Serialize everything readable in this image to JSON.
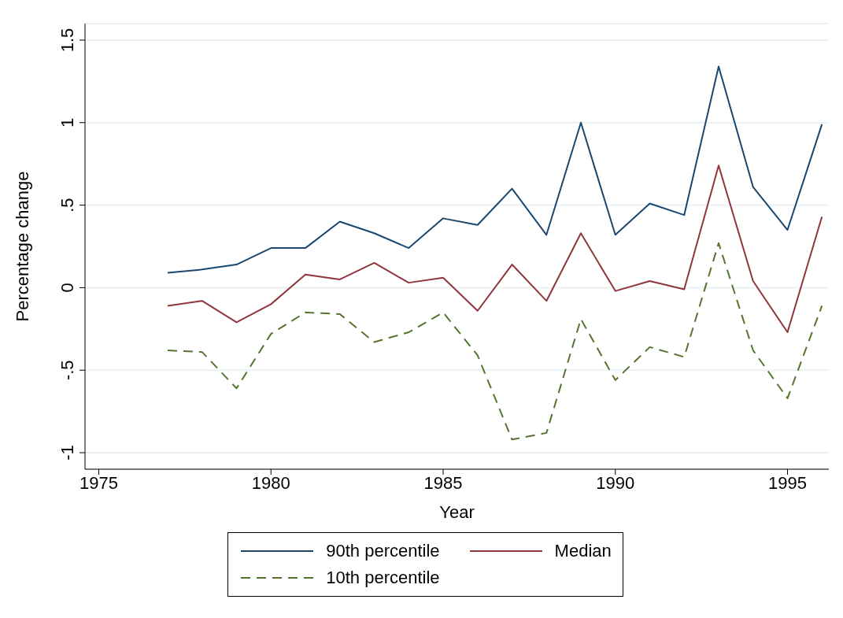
{
  "chart_data": {
    "type": "line",
    "xlabel": "Year",
    "ylabel": "Percentage change",
    "x": [
      1977,
      1978,
      1979,
      1980,
      1981,
      1982,
      1983,
      1984,
      1985,
      1986,
      1987,
      1988,
      1989,
      1990,
      1991,
      1992,
      1993,
      1994,
      1995,
      1996
    ],
    "series": [
      {
        "name": "90th percentile",
        "color": "#1a476f",
        "line_style": "solid",
        "values": [
          0.09,
          0.11,
          0.14,
          0.24,
          0.24,
          0.4,
          0.33,
          0.24,
          0.42,
          0.38,
          0.6,
          0.32,
          1.0,
          0.32,
          0.51,
          0.44,
          1.34,
          0.61,
          0.35,
          0.99
        ]
      },
      {
        "name": "Median",
        "color": "#90353b",
        "line_style": "solid",
        "values": [
          -0.11,
          -0.08,
          -0.21,
          -0.1,
          0.08,
          0.05,
          0.15,
          0.03,
          0.06,
          -0.14,
          0.14,
          -0.08,
          0.33,
          -0.02,
          0.04,
          -0.01,
          0.74,
          0.04,
          -0.27,
          0.43
        ]
      },
      {
        "name": "10th percentile",
        "color": "#55752f",
        "line_style": "dashed",
        "values": [
          -0.38,
          -0.39,
          -0.61,
          -0.28,
          -0.15,
          -0.16,
          -0.33,
          -0.27,
          -0.15,
          -0.41,
          -0.92,
          -0.88,
          -0.19,
          -0.56,
          -0.36,
          -0.42,
          0.27,
          -0.38,
          -0.67,
          -0.11
        ]
      }
    ],
    "xlim": [
      1974.6,
      1996.2
    ],
    "xticks": [
      1975,
      1980,
      1985,
      1990,
      1995
    ],
    "ylim": [
      -1.1,
      1.6
    ],
    "yticks": [
      {
        "value": -1,
        "label": "-1"
      },
      {
        "value": -0.5,
        "label": "-.5"
      },
      0,
      {
        "value": 0.5,
        "label": ".5"
      },
      1,
      1.5
    ],
    "grid": "y",
    "legend": "bottom"
  }
}
